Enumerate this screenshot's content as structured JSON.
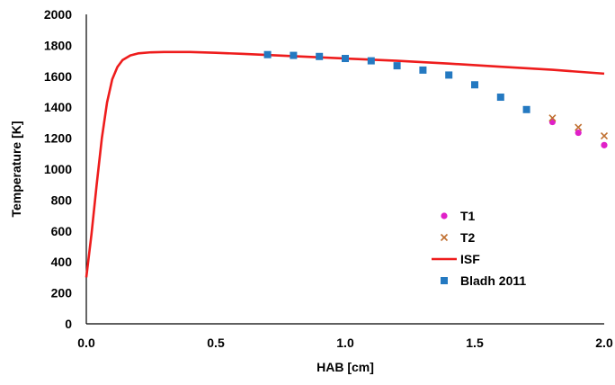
{
  "chart_data": {
    "type": "line",
    "xlabel": "HAB [cm]",
    "ylabel": "Temperature [K]",
    "xlim": [
      0.0,
      2.0
    ],
    "ylim": [
      0,
      2000
    ],
    "xticks": [
      "0.0",
      "0.5",
      "1.0",
      "1.5",
      "2.0"
    ],
    "yticks": [
      "0",
      "200",
      "400",
      "600",
      "800",
      "1000",
      "1200",
      "1400",
      "1600",
      "1800",
      "2000"
    ],
    "grid": false,
    "legend_position": "lower-right",
    "series": [
      {
        "name": "T1",
        "kind": "scatter",
        "marker": "circle",
        "color": "#e020c8",
        "x": [
          1.8,
          1.9,
          2.0
        ],
        "y": [
          1305,
          1235,
          1155
        ]
      },
      {
        "name": "T2",
        "kind": "scatter",
        "marker": "x",
        "color": "#c07030",
        "x": [
          1.8,
          1.9,
          2.0
        ],
        "y": [
          1330,
          1270,
          1215
        ]
      },
      {
        "name": "ISF",
        "kind": "line",
        "color": "#ee1c1c",
        "x": [
          0.0,
          0.02,
          0.04,
          0.06,
          0.08,
          0.1,
          0.12,
          0.14,
          0.17,
          0.2,
          0.25,
          0.3,
          0.4,
          0.5,
          0.6,
          0.8,
          1.0,
          1.2,
          1.4,
          1.6,
          1.8,
          2.0
        ],
        "y": [
          300,
          580,
          900,
          1200,
          1430,
          1580,
          1660,
          1705,
          1735,
          1748,
          1755,
          1757,
          1757,
          1752,
          1745,
          1730,
          1715,
          1700,
          1682,
          1662,
          1642,
          1617
        ]
      },
      {
        "name": "Bladh 2011",
        "kind": "scatter",
        "marker": "square",
        "color": "#2479c1",
        "x": [
          0.7,
          0.8,
          0.9,
          1.0,
          1.1,
          1.2,
          1.3,
          1.4,
          1.5,
          1.6,
          1.7
        ],
        "y": [
          1740,
          1735,
          1728,
          1715,
          1700,
          1668,
          1640,
          1608,
          1545,
          1465,
          1385
        ]
      }
    ]
  }
}
